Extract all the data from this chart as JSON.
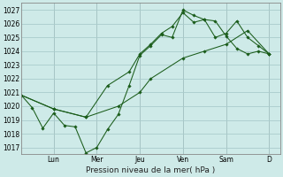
{
  "xlabel": "Pression niveau de la mer( hPa )",
  "background_color": "#ceeae8",
  "grid_color": "#aacccc",
  "line_color": "#1a5c1a",
  "ylim": [
    1016.5,
    1027.5
  ],
  "yticks": [
    1017,
    1018,
    1019,
    1020,
    1021,
    1022,
    1023,
    1024,
    1025,
    1026,
    1027
  ],
  "day_labels": [
    "Lun",
    "Mer",
    "Jeu",
    "Ven",
    "Sam",
    "D"
  ],
  "day_positions": [
    2.0,
    4.67,
    7.33,
    10.0,
    12.67,
    15.33
  ],
  "xlim": [
    0,
    16
  ],
  "series1": {
    "x": [
      0.0,
      0.67,
      1.33,
      2.0,
      2.67,
      3.33,
      4.0,
      4.67,
      5.33,
      6.0,
      6.67,
      7.33,
      8.0,
      8.67,
      9.33,
      10.0,
      10.67,
      11.33,
      12.0,
      12.67,
      13.33,
      14.0,
      14.67,
      15.33
    ],
    "y": [
      1020.8,
      1019.9,
      1018.4,
      1019.5,
      1018.6,
      1018.5,
      1016.6,
      1017.0,
      1018.3,
      1019.4,
      1021.5,
      1023.7,
      1024.4,
      1025.2,
      1025.0,
      1027.0,
      1026.6,
      1026.3,
      1026.2,
      1025.1,
      1024.2,
      1023.8,
      1024.0,
      1023.8
    ]
  },
  "series2": {
    "x": [
      0.0,
      2.0,
      4.0,
      5.33,
      6.67,
      7.33,
      8.0,
      8.67,
      9.33,
      10.0,
      10.67,
      11.33,
      12.0,
      12.67,
      13.33,
      14.0,
      14.67,
      15.33
    ],
    "y": [
      1020.8,
      1019.8,
      1019.2,
      1021.5,
      1022.5,
      1023.8,
      1024.5,
      1025.3,
      1025.8,
      1026.8,
      1026.1,
      1026.3,
      1025.0,
      1025.3,
      1026.2,
      1025.0,
      1024.4,
      1023.8
    ]
  },
  "series3": {
    "x": [
      0.0,
      2.0,
      4.0,
      6.0,
      7.33,
      8.0,
      10.0,
      11.33,
      12.67,
      14.0,
      15.33
    ],
    "y": [
      1020.8,
      1019.8,
      1019.2,
      1020.0,
      1021.0,
      1022.0,
      1023.5,
      1024.0,
      1024.5,
      1025.5,
      1023.8
    ]
  }
}
